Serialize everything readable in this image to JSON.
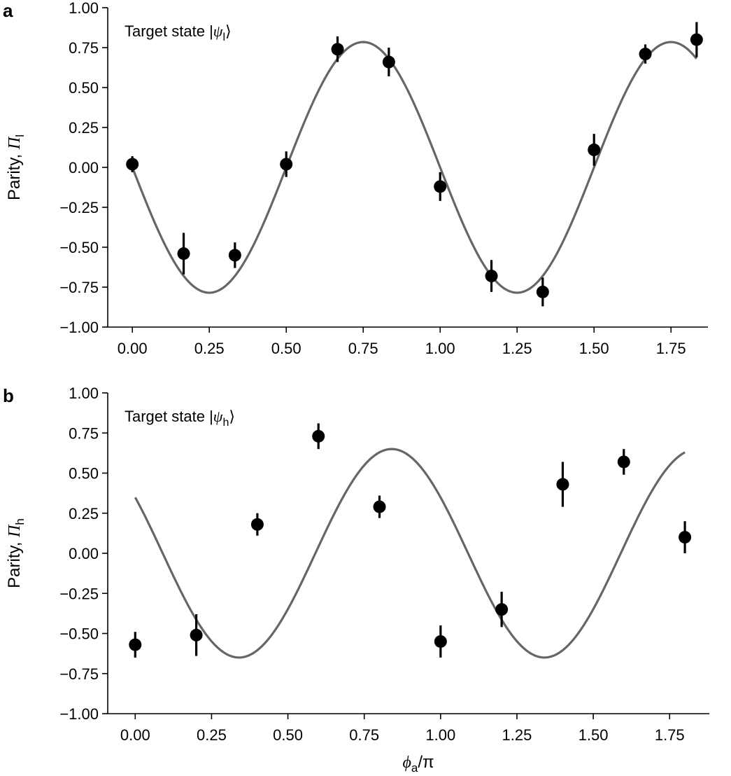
{
  "colors": {
    "fit_line": "#666666",
    "points": "#000000",
    "axes": "#000000"
  },
  "chart_data": [
    {
      "type": "scatter",
      "panel_label": "a",
      "annotation": {
        "prefix": "Target state |",
        "symbol": "ψ",
        "subscript": "l",
        "suffix": "⟩"
      },
      "ylabel": {
        "prefix": "Parity, ",
        "symbol": "Π",
        "subscript": "l"
      },
      "xlabel": null,
      "xlim": [
        -0.08,
        1.87
      ],
      "ylim": [
        -1.0,
        1.0
      ],
      "xticks": [
        0,
        0.25,
        0.5,
        0.75,
        1.0,
        1.25,
        1.5,
        1.75
      ],
      "xtick_labels": [
        "0.00",
        "0.25",
        "0.50",
        "0.75",
        "1.00",
        "1.25",
        "1.50",
        "1.75"
      ],
      "yticks": [
        -1.0,
        -0.75,
        -0.5,
        -0.25,
        0,
        0.25,
        0.5,
        0.75,
        1.0
      ],
      "ytick_labels": [
        "−1.00",
        "−0.75",
        "−0.50",
        "−0.25",
        "0.00",
        "0.25",
        "0.50",
        "0.75",
        "1.00"
      ],
      "fit": {
        "amplitude": 0.785,
        "period": 1.0,
        "phase": 0,
        "sign": -1,
        "x_range": [
          0,
          1.833
        ]
      },
      "points": [
        {
          "x": 0.0,
          "y": 0.02,
          "err": 0.05
        },
        {
          "x": 0.1667,
          "y": -0.54,
          "err": 0.13
        },
        {
          "x": 0.3333,
          "y": -0.55,
          "err": 0.08
        },
        {
          "x": 0.5,
          "y": 0.02,
          "err": 0.08
        },
        {
          "x": 0.6667,
          "y": 0.74,
          "err": 0.08
        },
        {
          "x": 0.8333,
          "y": 0.66,
          "err": 0.09
        },
        {
          "x": 1.0,
          "y": -0.12,
          "err": 0.09
        },
        {
          "x": 1.1667,
          "y": -0.68,
          "err": 0.1
        },
        {
          "x": 1.3333,
          "y": -0.78,
          "err": 0.09
        },
        {
          "x": 1.5,
          "y": 0.11,
          "err": 0.1
        },
        {
          "x": 1.6667,
          "y": 0.71,
          "err": 0.06
        },
        {
          "x": 1.8333,
          "y": 0.8,
          "err": 0.11
        }
      ]
    },
    {
      "type": "scatter",
      "panel_label": "b",
      "annotation": {
        "prefix": "Target state |",
        "symbol": "ψ",
        "subscript": "h",
        "suffix": "⟩"
      },
      "ylabel": {
        "prefix": "Parity, ",
        "symbol": "Π",
        "subscript": "h"
      },
      "xlabel": {
        "symbol": "ϕ",
        "subscript": "a",
        "suffix": "/π"
      },
      "xlim": [
        -0.09,
        1.88
      ],
      "ylim": [
        -1.0,
        1.0
      ],
      "xticks": [
        0,
        0.25,
        0.5,
        0.75,
        1.0,
        1.25,
        1.5,
        1.75
      ],
      "xtick_labels": [
        "0.00",
        "0.25",
        "0.50",
        "0.75",
        "1.00",
        "1.25",
        "1.50",
        "1.75"
      ],
      "yticks": [
        -1.0,
        -0.75,
        -0.5,
        -0.25,
        0,
        0.25,
        0.5,
        0.75,
        1.0
      ],
      "ytick_labels": [
        "−1.00",
        "−0.75",
        "−0.50",
        "−0.25",
        "0.00",
        "0.25",
        "0.50",
        "0.75",
        "1.00"
      ],
      "fit": {
        "amplitude": 0.65,
        "period": 1.0,
        "phase": 0.09,
        "sign": -1,
        "x_range": [
          0,
          1.8
        ]
      },
      "points": [
        {
          "x": 0.0,
          "y": -0.57,
          "err": 0.08
        },
        {
          "x": 0.2,
          "y": -0.51,
          "err": 0.13
        },
        {
          "x": 0.4,
          "y": 0.18,
          "err": 0.07
        },
        {
          "x": 0.6,
          "y": 0.73,
          "err": 0.08
        },
        {
          "x": 0.8,
          "y": 0.29,
          "err": 0.07
        },
        {
          "x": 1.0,
          "y": -0.55,
          "err": 0.1
        },
        {
          "x": 1.2,
          "y": -0.35,
          "err": 0.11
        },
        {
          "x": 1.4,
          "y": 0.43,
          "err": 0.14
        },
        {
          "x": 1.6,
          "y": 0.57,
          "err": 0.08
        },
        {
          "x": 1.8,
          "y": 0.1,
          "err": 0.1
        }
      ]
    }
  ]
}
